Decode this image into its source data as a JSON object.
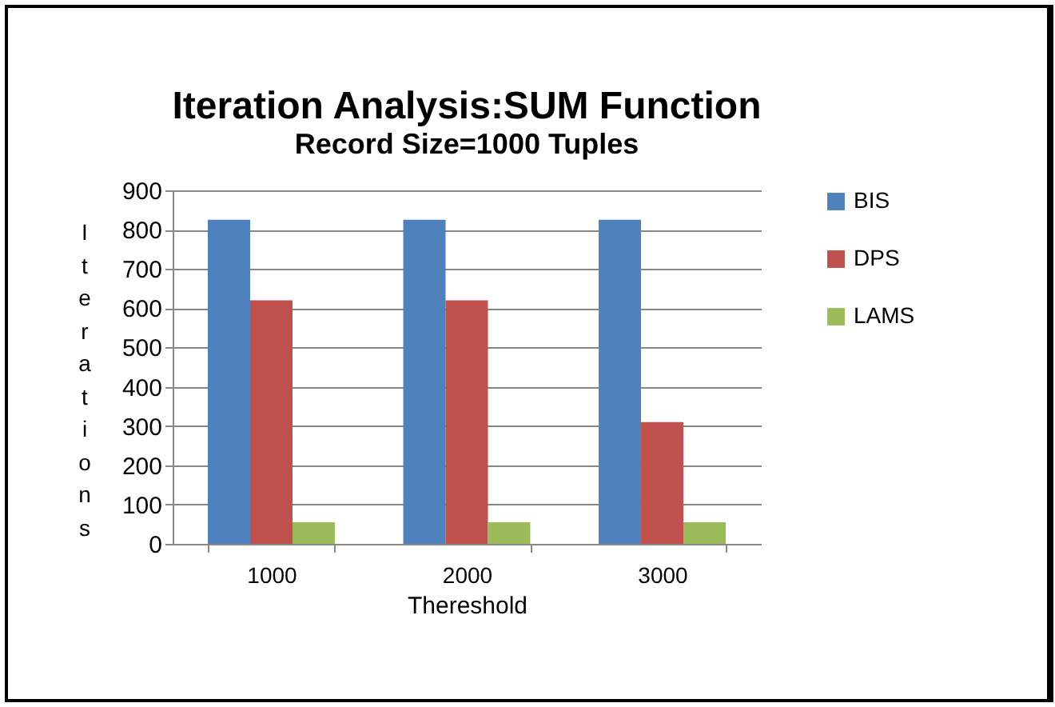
{
  "chart_data": {
    "type": "bar",
    "title": "Iteration Analysis:SUM Function",
    "subtitle": "Record Size=1000 Tuples",
    "xlabel": "Thereshold",
    "ylabel": "Iterations",
    "categories": [
      "1000",
      "2000",
      "3000"
    ],
    "series": [
      {
        "name": "BIS",
        "color": "#4f81bd",
        "values": [
          825,
          825,
          825
        ]
      },
      {
        "name": "DPS",
        "color": "#c0504d",
        "values": [
          620,
          620,
          310
        ]
      },
      {
        "name": "LAMS",
        "color": "#9bbb59",
        "values": [
          55,
          55,
          55
        ]
      }
    ],
    "ylim": [
      0,
      900
    ],
    "yticks": [
      0,
      100,
      200,
      300,
      400,
      500,
      600,
      700,
      800,
      900
    ],
    "grid": "y",
    "legend": "right"
  }
}
